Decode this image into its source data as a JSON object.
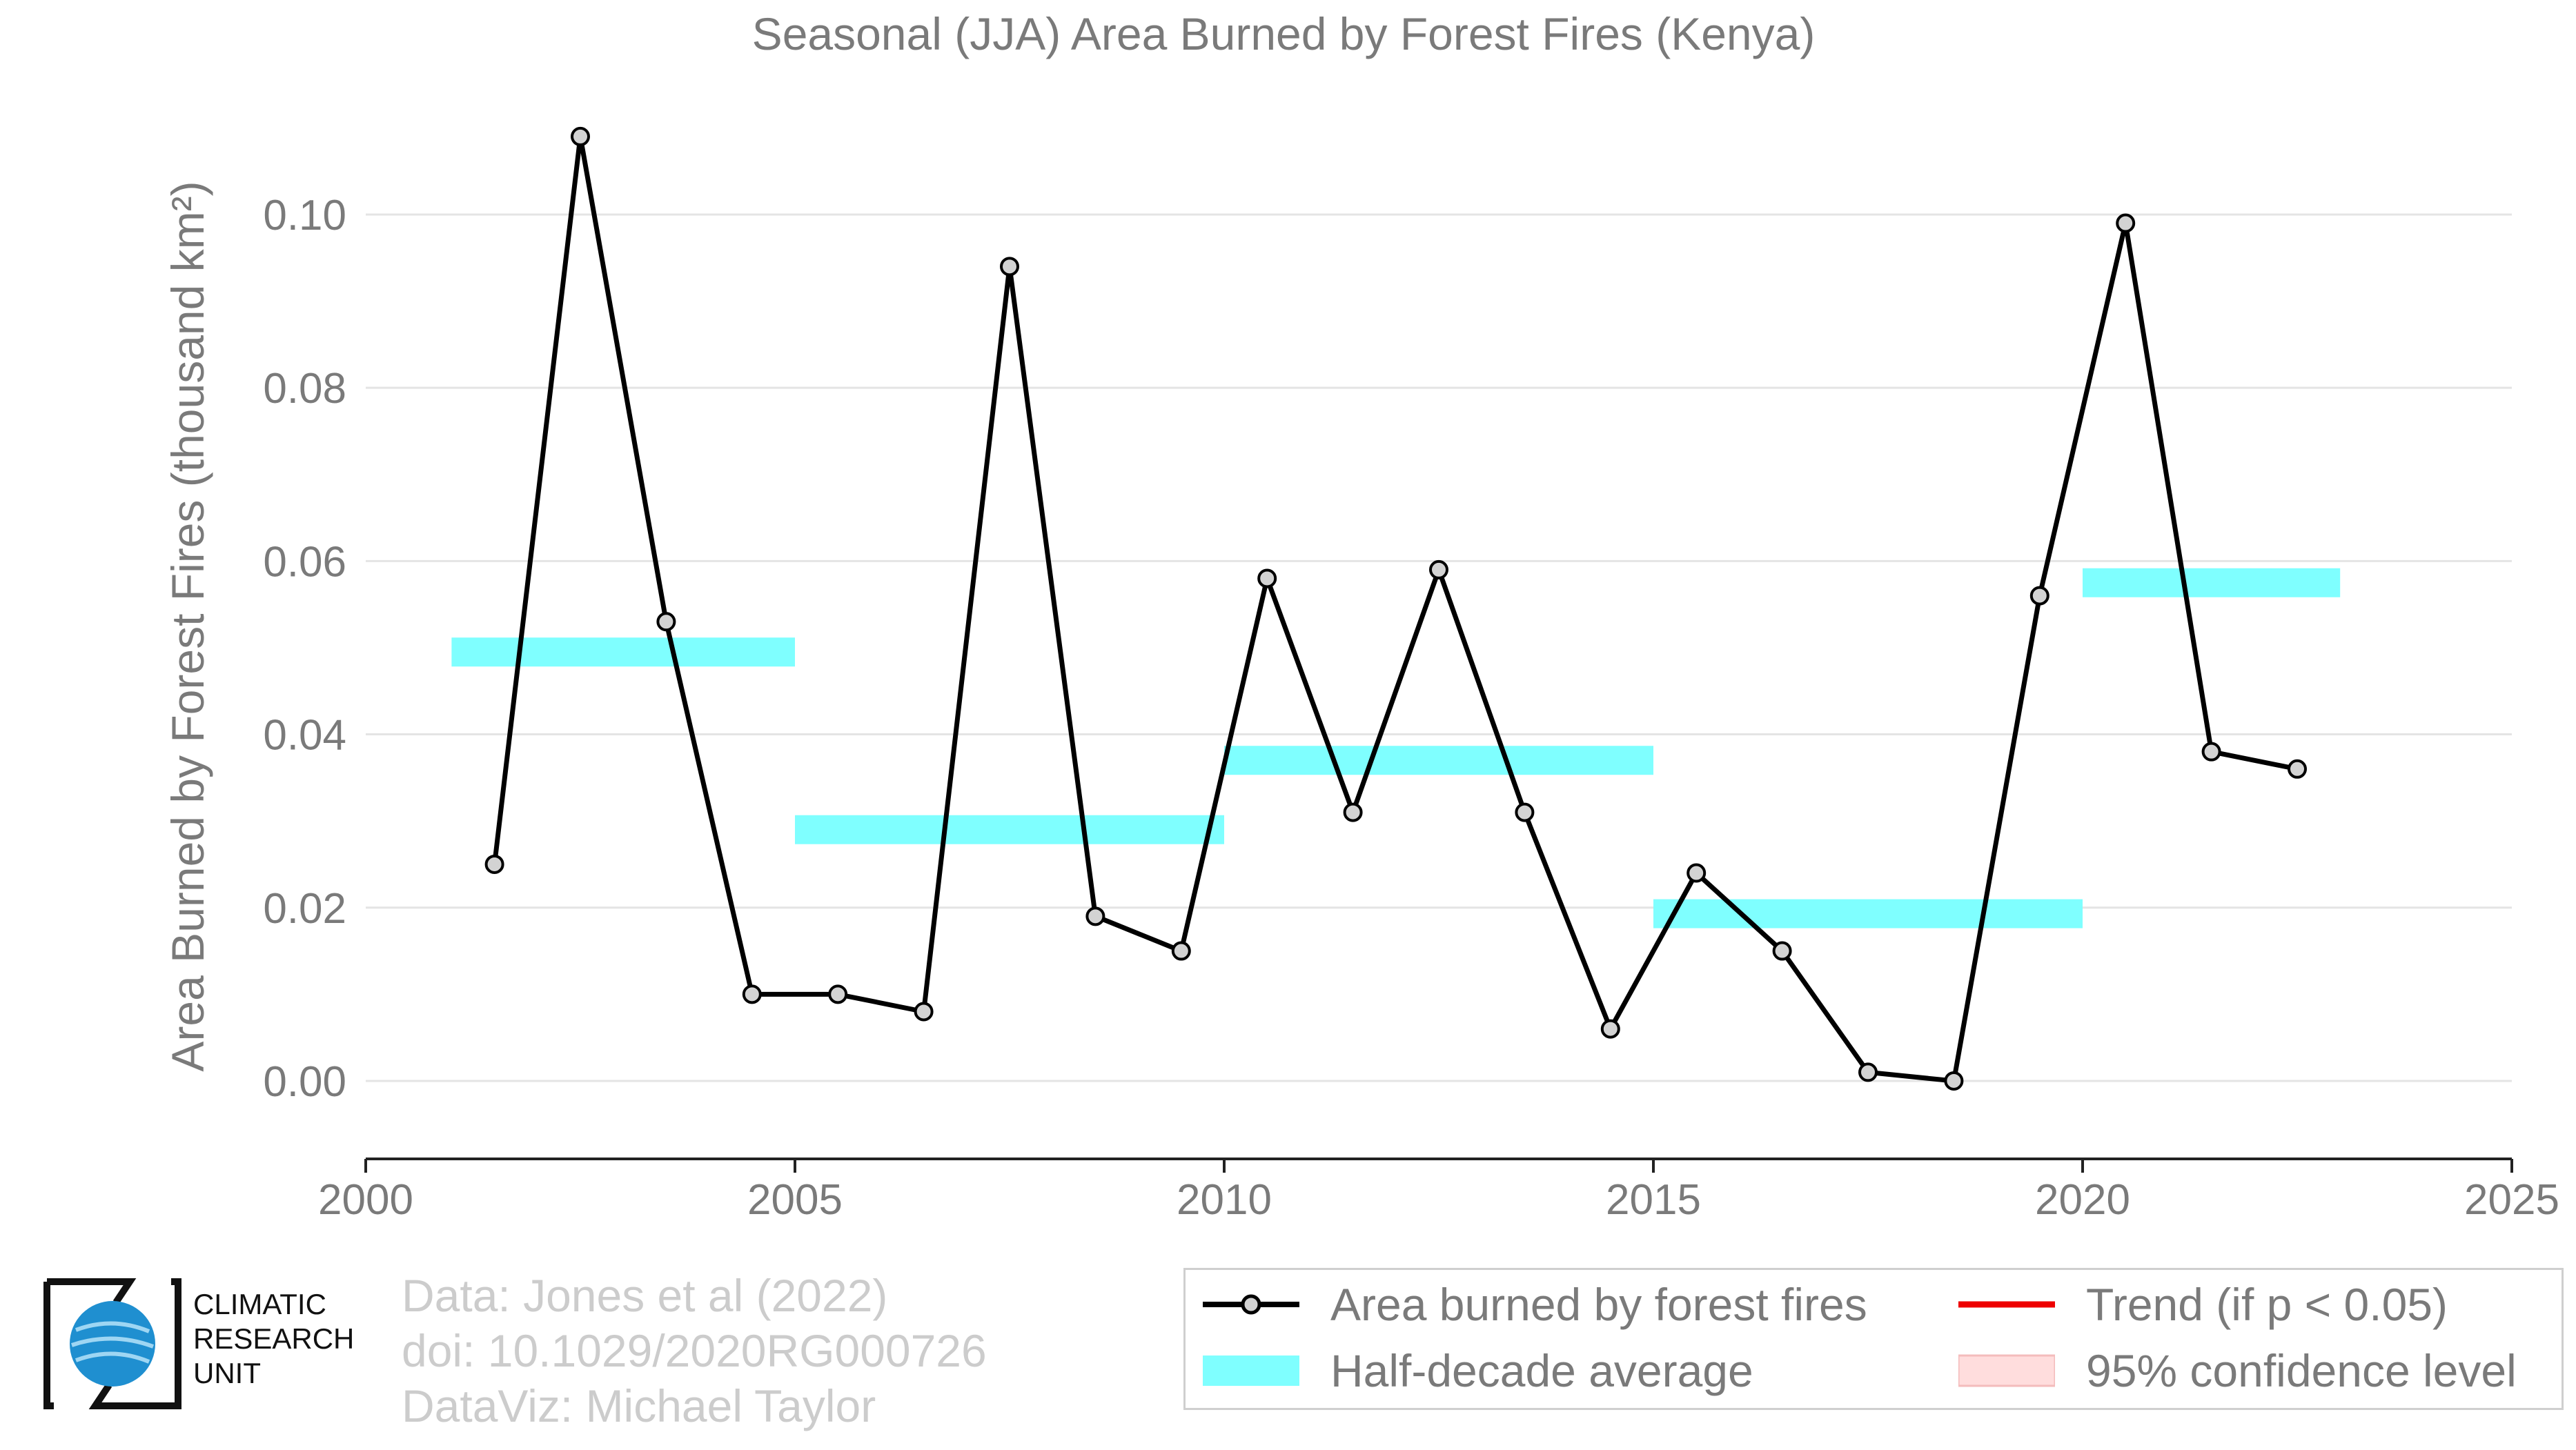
{
  "chart_data": {
    "type": "line",
    "title": "Seasonal (JJA) Area Burned by Forest Fires (Kenya)",
    "ylabel": "Area Burned by Forest Fires (thousand km²)",
    "xlabel": "",
    "xlim": [
      2000,
      2025
    ],
    "ylim": [
      -0.009,
      0.116
    ],
    "x_ticks": [
      "2000",
      "2005",
      "2010",
      "2015",
      "2020",
      "2025"
    ],
    "y_ticks": [
      "0.00",
      "0.02",
      "0.04",
      "0.06",
      "0.08",
      "0.10"
    ],
    "grid": "horizontal",
    "series": [
      {
        "name": "Area burned by forest fires",
        "type": "line",
        "color": "#000000",
        "marker_color": "#d3d3d3",
        "x": [
          2001.5,
          2002.5,
          2003.5,
          2004.5,
          2005.5,
          2006.5,
          2007.5,
          2008.5,
          2009.5,
          2010.5,
          2011.5,
          2012.5,
          2013.5,
          2014.5,
          2015.5,
          2016.5,
          2017.5,
          2018.5,
          2019.5,
          2020.5,
          2021.5,
          2022.5
        ],
        "y": [
          0.025,
          0.109,
          0.053,
          0.01,
          0.01,
          0.008,
          0.094,
          0.019,
          0.015,
          0.058,
          0.031,
          0.059,
          0.031,
          0.006,
          0.024,
          0.015,
          0.001,
          0.0,
          0.056,
          0.099,
          0.038,
          0.036
        ]
      },
      {
        "name": "Half-decade average",
        "type": "segments",
        "color": "#7fffff",
        "segments": [
          {
            "x0": 2001,
            "x1": 2005,
            "y": 0.0495
          },
          {
            "x0": 2005,
            "x1": 2010,
            "y": 0.029
          },
          {
            "x0": 2010,
            "x1": 2015,
            "y": 0.037
          },
          {
            "x0": 2015,
            "x1": 2020,
            "y": 0.0193
          },
          {
            "x0": 2020,
            "x1": 2023,
            "y": 0.0575
          }
        ]
      }
    ],
    "legend": {
      "position": "bottom-right",
      "items": [
        {
          "label": "Area burned by forest fires",
          "kind": "line-marker",
          "color": "#000000"
        },
        {
          "label": "Trend (if p < 0.05)",
          "kind": "line",
          "color": "#ee0000"
        },
        {
          "label": "Half-decade average",
          "kind": "band",
          "color": "#7fffff"
        },
        {
          "label": "95% confidence level",
          "kind": "band",
          "color": "#ffdddd"
        }
      ]
    }
  },
  "footer": {
    "data_source": "Data: Jones et al (2022)",
    "doi": "doi: 10.1029/2020RG000726",
    "dataviz": "DataViz: Michael Taylor"
  },
  "logo": {
    "line1": "CLIMATIC",
    "line2": "RESEARCH",
    "line3": "UNIT"
  }
}
